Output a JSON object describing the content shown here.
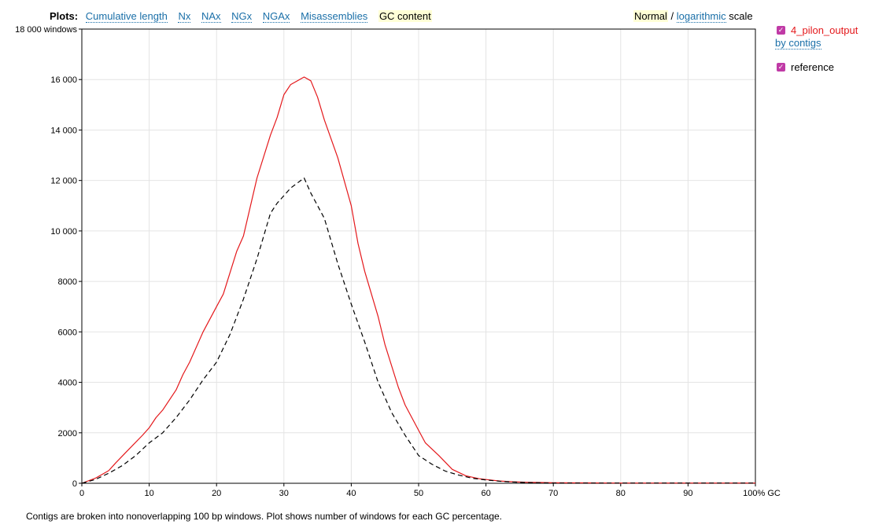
{
  "nav": {
    "label": "Plots:",
    "items": [
      "Cumulative length",
      "Nx",
      "NAx",
      "NGx",
      "NGAx",
      "Misassemblies",
      "GC content"
    ],
    "selected": "GC content"
  },
  "scale": {
    "normal": "Normal",
    "separator": "/",
    "logarithmic": "logarithmic",
    "suffix": "scale"
  },
  "legend": {
    "items": [
      {
        "name": "4_pilon_output",
        "sub": "by contigs",
        "color": "#e4181b",
        "checked": true
      },
      {
        "name": "reference",
        "sub": "",
        "color": "#000000",
        "checked": true
      }
    ]
  },
  "caption": "Contigs are broken into nonoverlapping 100 bp windows. Plot shows number of windows for each GC percentage.",
  "chart_data": {
    "type": "line",
    "title": "",
    "xlabel": "",
    "ylabel": "",
    "xlim": [
      0,
      100
    ],
    "ylim": [
      0,
      18000
    ],
    "x_ticks": [
      "0",
      "10",
      "20",
      "30",
      "40",
      "50",
      "60",
      "70",
      "80",
      "90",
      "100% GC"
    ],
    "y_ticks": [
      "0",
      "2000",
      "4000",
      "6000",
      "8000",
      "10 000",
      "12 000",
      "14 000",
      "16 000",
      "18 000 windows"
    ],
    "grid": true,
    "legend_position": "right",
    "series": [
      {
        "name": "4_pilon_output",
        "color": "#e4181b",
        "dash": false,
        "x": [
          0,
          2,
          4,
          5,
          7,
          9,
          10,
          11,
          12,
          14,
          15,
          16,
          18,
          20,
          21,
          23,
          24,
          26,
          28,
          29,
          30,
          31,
          33,
          34,
          35,
          36,
          38,
          40,
          41,
          42,
          44,
          45,
          47,
          48,
          50,
          51,
          53,
          55,
          57,
          59,
          60,
          62,
          64,
          66,
          68,
          70,
          75,
          80,
          85,
          90,
          95,
          100
        ],
        "y": [
          0,
          200,
          500,
          800,
          1350,
          1900,
          2200,
          2600,
          2900,
          3700,
          4300,
          4800,
          6000,
          7000,
          7500,
          9200,
          9800,
          12100,
          13800,
          14500,
          15400,
          15800,
          16100,
          15950,
          15300,
          14400,
          12900,
          11000,
          9500,
          8400,
          6600,
          5500,
          3800,
          3100,
          2100,
          1600,
          1100,
          550,
          300,
          180,
          150,
          90,
          60,
          40,
          30,
          20,
          15,
          10,
          10,
          10,
          10,
          10
        ]
      },
      {
        "name": "reference",
        "color": "#000000",
        "dash": true,
        "x": [
          0,
          2,
          4,
          6,
          8,
          10,
          12,
          14,
          16,
          18,
          20,
          22,
          24,
          26,
          28,
          29,
          31,
          32,
          33,
          34,
          36,
          38,
          40,
          42,
          44,
          46,
          48,
          50,
          52,
          54,
          56,
          58,
          60,
          62,
          64,
          66,
          68,
          70,
          75,
          80,
          85,
          90,
          95,
          100
        ],
        "y": [
          0,
          150,
          400,
          700,
          1100,
          1600,
          2000,
          2600,
          3300,
          4100,
          4800,
          5900,
          7300,
          8900,
          10700,
          11100,
          11700,
          11900,
          12100,
          11500,
          10500,
          8700,
          7100,
          5600,
          4000,
          2800,
          1900,
          1100,
          750,
          480,
          320,
          200,
          130,
          80,
          50,
          30,
          20,
          10,
          10,
          10,
          10,
          10,
          10,
          10
        ]
      }
    ]
  }
}
